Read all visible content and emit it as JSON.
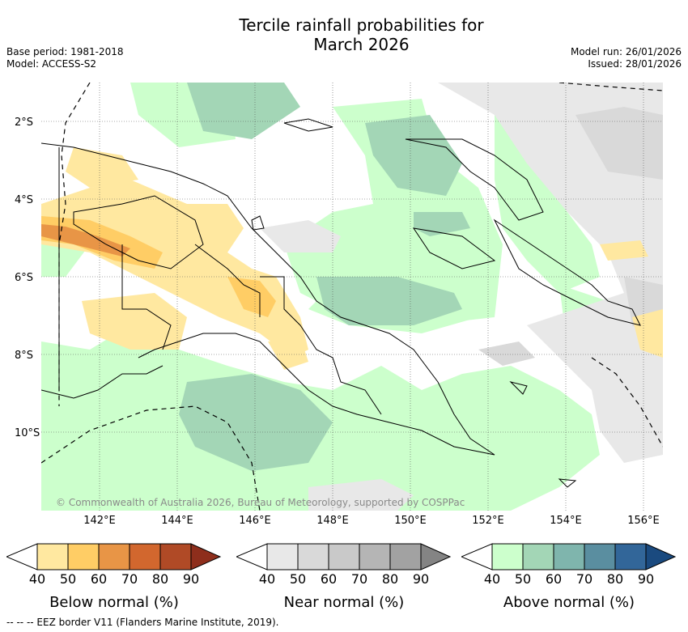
{
  "title_line1": "Tercile rainfall probabilities for",
  "title_line2": "March 2026",
  "meta_left": [
    "Base period: 1981-2018",
    "Model: ACCESS-S2"
  ],
  "meta_right": [
    "Model run: 26/01/2026",
    "Issued: 28/01/2026"
  ],
  "lat_labels": [
    "2°S",
    "4°S",
    "6°S",
    "8°S",
    "10°S"
  ],
  "lon_labels": [
    "142°E",
    "144°E",
    "146°E",
    "148°E",
    "150°E",
    "152°E",
    "154°E",
    "156°E"
  ],
  "copyright": "© Commonwealth of Australia 2026, Bureau of Meteorology, supported by COSPPac",
  "legends": [
    {
      "caption": "Below normal (%)",
      "ticks": [
        "40",
        "50",
        "60",
        "70",
        "80",
        "90"
      ],
      "colors": [
        "#ffe8a0",
        "#ffcd65",
        "#e89546",
        "#d2672e",
        "#b04a26",
        "#8e2e1c"
      ]
    },
    {
      "caption": "Near normal (%)",
      "ticks": [
        "40",
        "50",
        "60",
        "70",
        "80",
        "90"
      ],
      "colors": [
        "#e8e8e8",
        "#d9d9d9",
        "#c9c9c9",
        "#b5b5b5",
        "#a2a2a2",
        "#848484"
      ]
    },
    {
      "caption": "Above normal (%)",
      "ticks": [
        "40",
        "50",
        "60",
        "70",
        "80",
        "90"
      ],
      "colors": [
        "#ccffcc",
        "#a3d6b6",
        "#7fb5ad",
        "#5a8ea0",
        "#326699",
        "#1a4a7f"
      ]
    }
  ],
  "eez_note": "-- -- -- EEZ border V11 (Flanders Marine Institute, 2019)."
}
